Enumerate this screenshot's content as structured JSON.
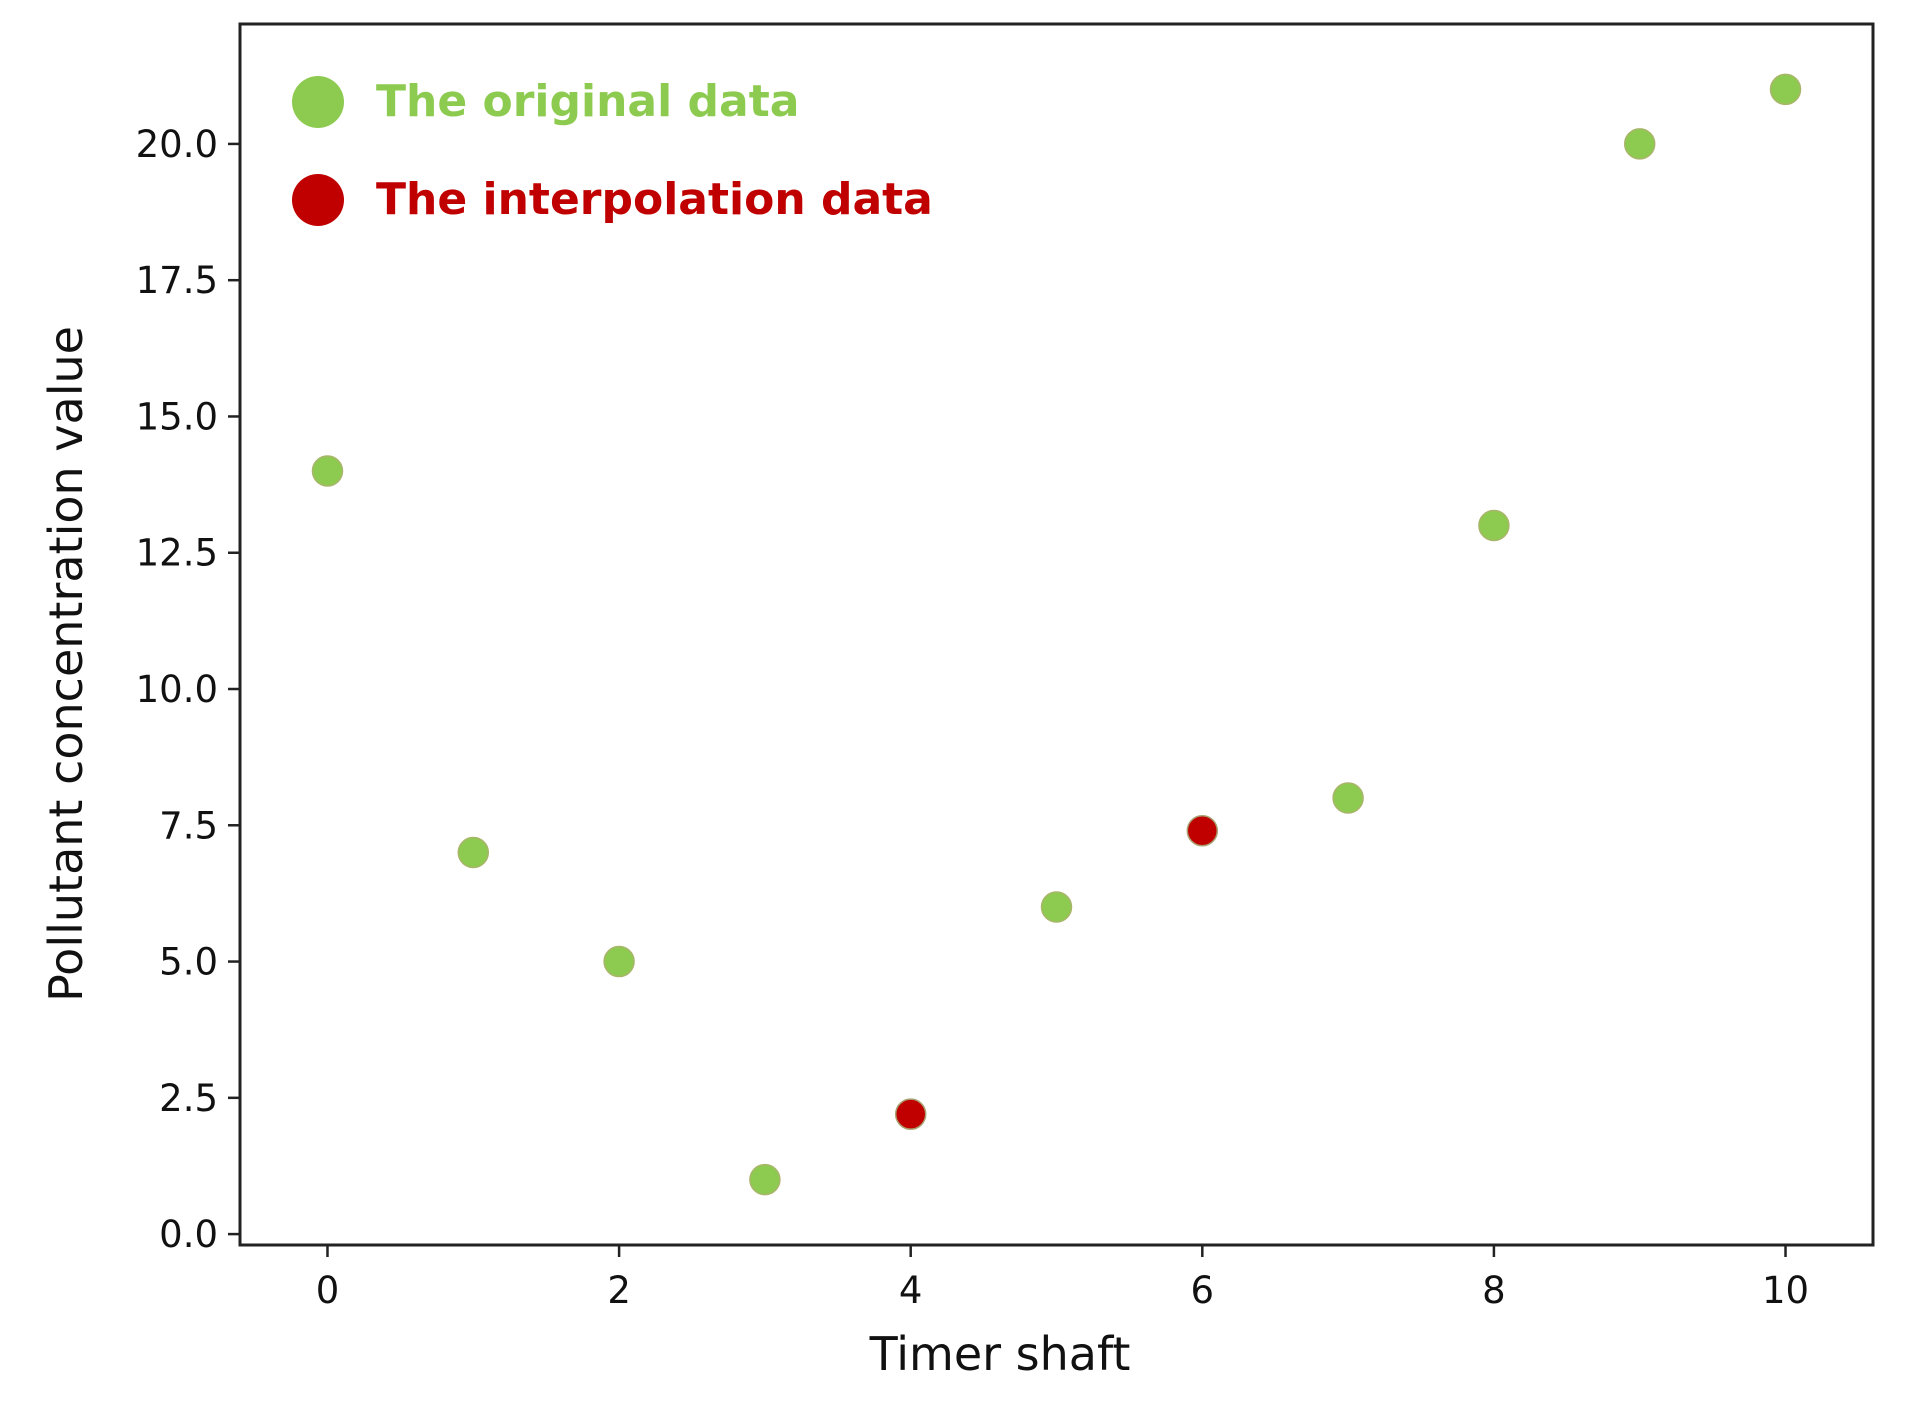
{
  "chart_data": {
    "type": "scatter",
    "title": "",
    "xlabel": "Timer shaft",
    "ylabel": "Pollutant concentration value",
    "xlim": [
      -0.6,
      10.6
    ],
    "ylim": [
      -0.2,
      22.2
    ],
    "x_ticks": [
      0,
      2,
      4,
      6,
      8,
      10
    ],
    "x_tick_labels": [
      "0",
      "2",
      "4",
      "6",
      "8",
      "10"
    ],
    "y_ticks": [
      0.0,
      2.5,
      5.0,
      7.5,
      10.0,
      12.5,
      15.0,
      17.5,
      20.0
    ],
    "y_tick_labels": [
      "0.0",
      "2.5",
      "5.0",
      "7.5",
      "10.0",
      "12.5",
      "15.0",
      "17.5",
      "20.0"
    ],
    "grid": false,
    "legend_position": "top-left",
    "series": [
      {
        "name": "The original data",
        "color": "#8dcb50",
        "points": [
          {
            "x": 0,
            "y": 14
          },
          {
            "x": 1,
            "y": 7
          },
          {
            "x": 2,
            "y": 5
          },
          {
            "x": 3,
            "y": 1
          },
          {
            "x": 5,
            "y": 6
          },
          {
            "x": 7,
            "y": 8
          },
          {
            "x": 8,
            "y": 13
          },
          {
            "x": 9,
            "y": 20
          },
          {
            "x": 10,
            "y": 21
          }
        ]
      },
      {
        "name": "The interpolation data",
        "color": "#c00000",
        "points": [
          {
            "x": 4,
            "y": 2.2
          },
          {
            "x": 6,
            "y": 7.4
          }
        ]
      }
    ]
  }
}
